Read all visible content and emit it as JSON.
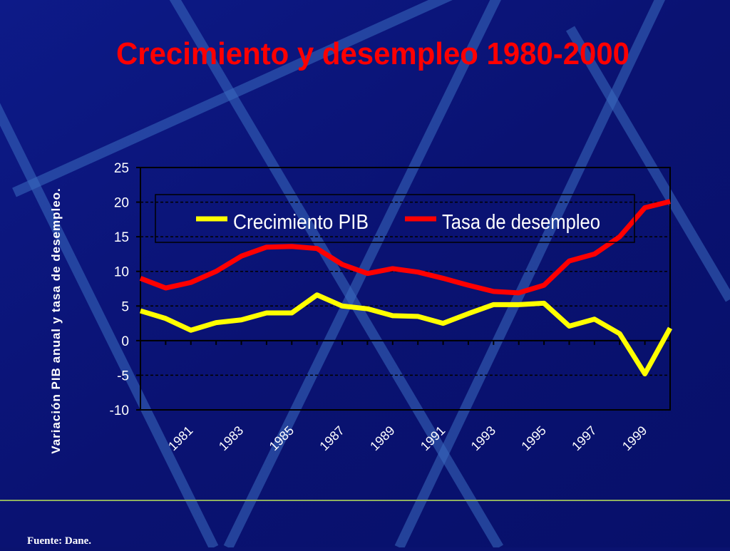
{
  "chart_data": {
    "type": "line",
    "title": "Crecimiento y desempleo 1980-2000",
    "y_label": "Variación PIB anual y tasa de desempleo.",
    "source": "Fuente: Dane.",
    "categories": [
      null,
      null,
      "1981",
      null,
      "1983",
      null,
      "1985",
      null,
      "1987",
      null,
      "1989",
      null,
      "1991",
      null,
      "1993",
      null,
      "1995",
      null,
      "1997",
      null,
      "1999",
      null
    ],
    "series": [
      {
        "name": "Crecimiento PIB",
        "color": "#ffff00",
        "values": [
          4.3,
          3.2,
          1.5,
          2.6,
          3.0,
          4.0,
          4.0,
          6.6,
          5.0,
          4.6,
          3.6,
          3.5,
          2.5,
          3.9,
          5.2,
          5.2,
          5.4,
          2.1,
          3.1,
          1.0,
          -4.8,
          1.8
        ]
      },
      {
        "name": "Tasa de desempleo",
        "color": "#ff0000",
        "values": [
          9.0,
          7.6,
          8.4,
          10.0,
          12.2,
          13.5,
          13.6,
          13.3,
          11.0,
          9.7,
          10.4,
          9.9,
          9.0,
          8.0,
          7.1,
          6.9,
          8.0,
          11.5,
          12.5,
          15.0,
          19.2,
          20.1
        ]
      }
    ],
    "ylim": [
      -10,
      25
    ],
    "yticks": [
      -10,
      -5,
      0,
      5,
      10,
      15,
      20,
      25
    ],
    "grid": true,
    "legend": "top"
  }
}
